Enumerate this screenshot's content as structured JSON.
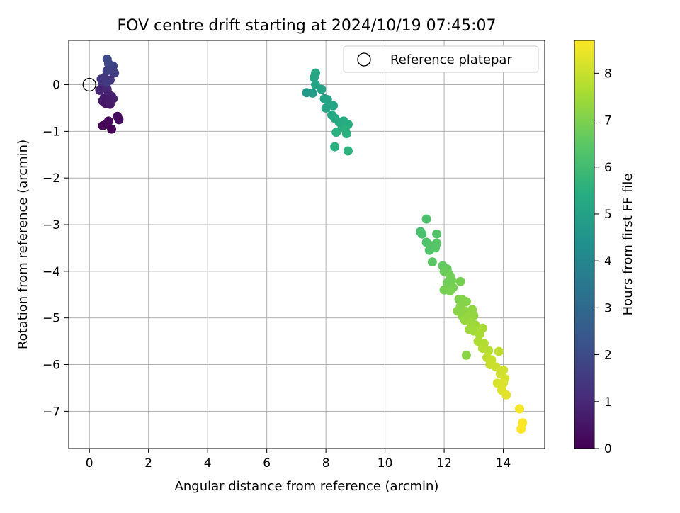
{
  "chart_data": {
    "type": "scatter",
    "title": "FOV centre drift starting at 2024/10/19 07:45:07",
    "xlabel": "Angular distance from reference (arcmin)",
    "ylabel": "Rotation from reference (arcmin)",
    "xlim": [
      -0.7,
      15.4
    ],
    "ylim": [
      -7.8,
      0.95
    ],
    "xticks": [
      0,
      2,
      4,
      6,
      8,
      10,
      12,
      14
    ],
    "yticks": [
      0,
      -1,
      -2,
      -3,
      -4,
      -5,
      -6,
      -7
    ],
    "grid": true,
    "legend": {
      "position": "top-right",
      "entries": [
        {
          "label": "Reference platepar",
          "marker": "open-circle"
        }
      ]
    },
    "reference_point": {
      "x": 0,
      "y": 0
    },
    "colorbar": {
      "label": "Hours from first FF file",
      "colormap": "viridis",
      "range": [
        0,
        8.7
      ],
      "ticks": [
        0,
        1,
        2,
        3,
        4,
        5,
        6,
        7,
        8
      ]
    },
    "series": [
      {
        "points": [
          {
            "x": 0.6,
            "y": 0.55,
            "t": 2.0
          },
          {
            "x": 0.65,
            "y": 0.45,
            "t": 1.9
          },
          {
            "x": 0.8,
            "y": 0.4,
            "t": 1.8
          },
          {
            "x": 0.75,
            "y": 0.3,
            "t": 1.7
          },
          {
            "x": 0.85,
            "y": 0.25,
            "t": 1.6
          },
          {
            "x": 0.6,
            "y": 0.3,
            "t": 1.7
          },
          {
            "x": 0.5,
            "y": 0.15,
            "t": 1.4
          },
          {
            "x": 0.7,
            "y": 0.1,
            "t": 1.3
          },
          {
            "x": 0.45,
            "y": 0.0,
            "t": 1.2
          },
          {
            "x": 0.55,
            "y": -0.05,
            "t": 1.1
          },
          {
            "x": 0.6,
            "y": -0.1,
            "t": 1.0
          },
          {
            "x": 0.35,
            "y": -0.12,
            "t": 0.9
          },
          {
            "x": 0.65,
            "y": -0.2,
            "t": 0.85
          },
          {
            "x": 0.75,
            "y": -0.25,
            "t": 0.8
          },
          {
            "x": 0.5,
            "y": -0.28,
            "t": 0.7
          },
          {
            "x": 0.8,
            "y": -0.3,
            "t": 0.75
          },
          {
            "x": 0.45,
            "y": -0.35,
            "t": 0.6
          },
          {
            "x": 0.55,
            "y": -0.4,
            "t": 0.5
          },
          {
            "x": 0.7,
            "y": -0.42,
            "t": 0.55
          },
          {
            "x": 0.65,
            "y": -0.35,
            "t": 0.65
          },
          {
            "x": 0.95,
            "y": -0.68,
            "t": 0.3
          },
          {
            "x": 1.0,
            "y": -0.75,
            "t": 0.25
          },
          {
            "x": 0.65,
            "y": -0.78,
            "t": 0.2
          },
          {
            "x": 0.55,
            "y": -0.85,
            "t": 0.15
          },
          {
            "x": 0.45,
            "y": -0.88,
            "t": 0.1
          },
          {
            "x": 0.75,
            "y": -0.95,
            "t": 0.05
          },
          {
            "x": 0.6,
            "y": 0.05,
            "t": 1.5
          },
          {
            "x": 0.4,
            "y": 0.12,
            "t": 1.45
          },
          {
            "x": 7.65,
            "y": 0.25,
            "t": 5.2
          },
          {
            "x": 7.6,
            "y": 0.15,
            "t": 5.15
          },
          {
            "x": 7.65,
            "y": 0.0,
            "t": 5.1
          },
          {
            "x": 7.85,
            "y": -0.1,
            "t": 5.0
          },
          {
            "x": 7.35,
            "y": -0.17,
            "t": 4.7
          },
          {
            "x": 7.55,
            "y": -0.18,
            "t": 4.75
          },
          {
            "x": 7.95,
            "y": -0.3,
            "t": 5.05
          },
          {
            "x": 8.05,
            "y": -0.32,
            "t": 5.1
          },
          {
            "x": 8.25,
            "y": -0.45,
            "t": 5.15
          },
          {
            "x": 8.0,
            "y": -0.5,
            "t": 5.05
          },
          {
            "x": 8.2,
            "y": -0.65,
            "t": 5.2
          },
          {
            "x": 8.3,
            "y": -0.72,
            "t": 5.25
          },
          {
            "x": 8.45,
            "y": -0.8,
            "t": 5.3
          },
          {
            "x": 8.6,
            "y": -0.78,
            "t": 5.35
          },
          {
            "x": 8.55,
            "y": -0.9,
            "t": 5.4
          },
          {
            "x": 8.75,
            "y": -0.85,
            "t": 5.45
          },
          {
            "x": 8.35,
            "y": -1.02,
            "t": 5.5
          },
          {
            "x": 8.7,
            "y": -1.05,
            "t": 5.55
          },
          {
            "x": 8.3,
            "y": -1.33,
            "t": 5.5
          },
          {
            "x": 8.75,
            "y": -1.42,
            "t": 5.6
          },
          {
            "x": 8.65,
            "y": -0.95,
            "t": 5.5
          },
          {
            "x": 11.4,
            "y": -2.88,
            "t": 6.2
          },
          {
            "x": 11.2,
            "y": -3.15,
            "t": 6.1
          },
          {
            "x": 11.25,
            "y": -3.2,
            "t": 6.15
          },
          {
            "x": 11.75,
            "y": -3.2,
            "t": 6.3
          },
          {
            "x": 11.4,
            "y": -3.38,
            "t": 6.25
          },
          {
            "x": 11.55,
            "y": -3.45,
            "t": 6.35
          },
          {
            "x": 11.75,
            "y": -3.4,
            "t": 6.4
          },
          {
            "x": 11.5,
            "y": -3.55,
            "t": 6.3
          },
          {
            "x": 11.7,
            "y": -3.5,
            "t": 6.4
          },
          {
            "x": 11.6,
            "y": -3.8,
            "t": 6.5
          },
          {
            "x": 11.95,
            "y": -3.88,
            "t": 6.6
          },
          {
            "x": 12.1,
            "y": -3.95,
            "t": 6.65
          },
          {
            "x": 12.0,
            "y": -4.0,
            "t": 6.7
          },
          {
            "x": 12.15,
            "y": -4.05,
            "t": 6.75
          },
          {
            "x": 12.2,
            "y": -4.1,
            "t": 6.8
          },
          {
            "x": 12.25,
            "y": -4.2,
            "t": 6.85
          },
          {
            "x": 12.1,
            "y": -4.25,
            "t": 6.8
          },
          {
            "x": 12.55,
            "y": -4.22,
            "t": 6.9
          },
          {
            "x": 12.3,
            "y": -4.35,
            "t": 6.9
          },
          {
            "x": 12.0,
            "y": -4.4,
            "t": 6.85
          },
          {
            "x": 12.2,
            "y": -4.42,
            "t": 6.95
          },
          {
            "x": 12.5,
            "y": -4.6,
            "t": 7.0
          },
          {
            "x": 12.6,
            "y": -4.6,
            "t": 7.05
          },
          {
            "x": 12.75,
            "y": -4.65,
            "t": 7.1
          },
          {
            "x": 12.55,
            "y": -4.75,
            "t": 7.1
          },
          {
            "x": 12.45,
            "y": -4.85,
            "t": 7.15
          },
          {
            "x": 12.7,
            "y": -4.85,
            "t": 7.2
          },
          {
            "x": 12.95,
            "y": -4.82,
            "t": 7.25
          },
          {
            "x": 12.6,
            "y": -4.95,
            "t": 7.2
          },
          {
            "x": 12.8,
            "y": -4.98,
            "t": 7.3
          },
          {
            "x": 13.0,
            "y": -4.95,
            "t": 7.3
          },
          {
            "x": 12.7,
            "y": -5.05,
            "t": 7.35
          },
          {
            "x": 12.9,
            "y": -5.1,
            "t": 7.4
          },
          {
            "x": 13.05,
            "y": -5.15,
            "t": 7.45
          },
          {
            "x": 12.85,
            "y": -5.25,
            "t": 7.45
          },
          {
            "x": 13.0,
            "y": -5.28,
            "t": 7.5
          },
          {
            "x": 13.3,
            "y": -5.22,
            "t": 7.55
          },
          {
            "x": 13.2,
            "y": -5.35,
            "t": 7.6
          },
          {
            "x": 13.15,
            "y": -5.5,
            "t": 7.65
          },
          {
            "x": 13.35,
            "y": -5.55,
            "t": 7.7
          },
          {
            "x": 13.3,
            "y": -5.65,
            "t": 7.75
          },
          {
            "x": 13.5,
            "y": -5.7,
            "t": 7.8
          },
          {
            "x": 13.45,
            "y": -5.85,
            "t": 7.85
          },
          {
            "x": 13.85,
            "y": -5.72,
            "t": 7.9
          },
          {
            "x": 12.75,
            "y": -5.8,
            "t": 7.2
          },
          {
            "x": 13.6,
            "y": -5.9,
            "t": 7.95
          },
          {
            "x": 13.55,
            "y": -6.0,
            "t": 8.0
          },
          {
            "x": 13.75,
            "y": -6.05,
            "t": 8.05
          },
          {
            "x": 14.0,
            "y": -6.12,
            "t": 8.1
          },
          {
            "x": 13.9,
            "y": -6.2,
            "t": 8.1
          },
          {
            "x": 14.05,
            "y": -6.3,
            "t": 8.15
          },
          {
            "x": 13.8,
            "y": -6.4,
            "t": 8.2
          },
          {
            "x": 14.0,
            "y": -6.4,
            "t": 8.25
          },
          {
            "x": 13.95,
            "y": -6.55,
            "t": 8.3
          },
          {
            "x": 14.1,
            "y": -6.65,
            "t": 8.35
          },
          {
            "x": 14.55,
            "y": -6.95,
            "t": 8.6
          },
          {
            "x": 14.65,
            "y": -7.25,
            "t": 8.65
          },
          {
            "x": 14.6,
            "y": -7.38,
            "t": 8.7
          }
        ]
      }
    ]
  }
}
